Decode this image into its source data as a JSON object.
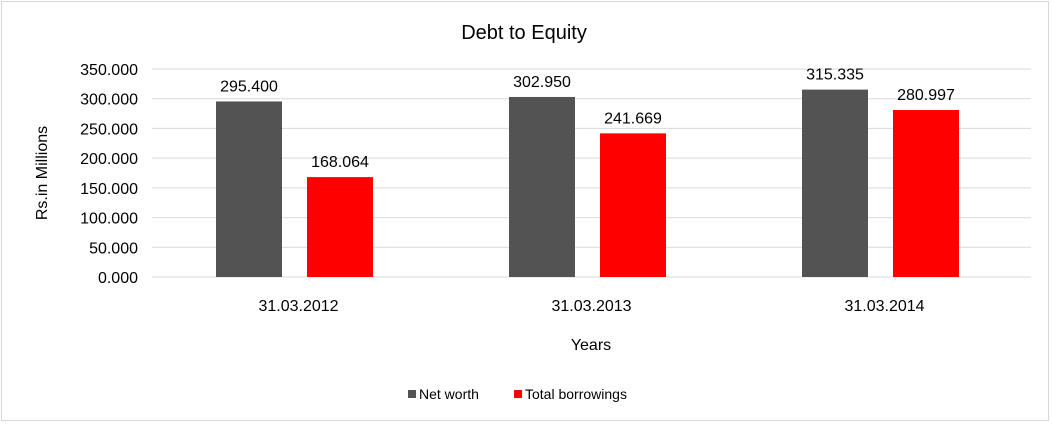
{
  "chart_data": {
    "type": "bar",
    "title": "Debt to Equity",
    "xlabel": "Years",
    "ylabel": "Rs.in Millions",
    "categories": [
      "31.03.2012",
      "31.03.2013",
      "31.03.2014"
    ],
    "series": [
      {
        "name": "Net worth",
        "color": "#535353",
        "values": [
          295.4,
          302.95,
          315.335
        ],
        "labels": [
          "295.400",
          "302.950",
          "315.335"
        ]
      },
      {
        "name": "Total borrowings",
        "color": "#ff0000",
        "values": [
          168.064,
          241.669,
          280.997
        ],
        "labels": [
          "168.064",
          "241.669",
          "280.997"
        ]
      }
    ],
    "ylim": [
      0,
      350
    ],
    "yticks": [
      0,
      50,
      100,
      150,
      200,
      250,
      300,
      350
    ],
    "ytick_labels": [
      "0.000",
      "50.000",
      "100.000",
      "150.000",
      "200.000",
      "250.000",
      "300.000",
      "350.000"
    ],
    "grid": true,
    "gridline_color": "#d9d9d9",
    "legend_position": "bottom"
  }
}
